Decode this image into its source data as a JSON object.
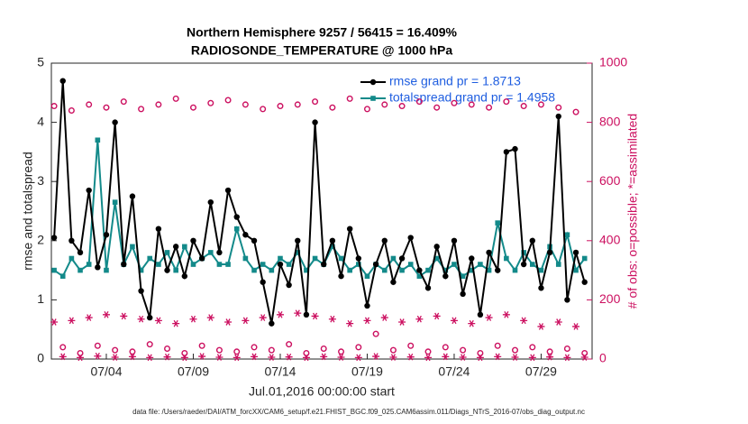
{
  "chart_data": {
    "type": "line",
    "title": "Northern Hemisphere 9257 / 56415 = 16.409%",
    "subtitle": "RADIOSONDE_TEMPERATURE @ 1000 hPa",
    "xlabel": "Jul.01,2016 00:00:00 start",
    "ylabel": "rmse and totalspread",
    "y2label": "# of obs: o=possible; *=assimilated",
    "footnote": "data file: /Users/raeder/DAI/ATM_forcXX/CAM6_setup/f.e21.FHIST_BGC.f09_025.CAM6assim.011/Diags_NTrS_2016-07/obs_diag_output.nc",
    "x": [
      0,
      0.5,
      1,
      1.5,
      2,
      2.5,
      3,
      3.5,
      4,
      4.5,
      5,
      5.5,
      6,
      6.5,
      7,
      7.5,
      8,
      8.5,
      9,
      9.5,
      10,
      10.5,
      11,
      11.5,
      12,
      12.5,
      13,
      13.5,
      14,
      14.5,
      15,
      15.5,
      16,
      16.5,
      17,
      17.5,
      18,
      18.5,
      19,
      19.5,
      20,
      20.5,
      21,
      21.5,
      22,
      22.5,
      23,
      23.5,
      24,
      24.5,
      25,
      25.5,
      26,
      26.5,
      27,
      27.5,
      28,
      28.5,
      29,
      29.5,
      30,
      30.5
    ],
    "xlim": [
      -0.16,
      30.93
    ],
    "xticks": [
      {
        "value": 3,
        "label": "07/04"
      },
      {
        "value": 8,
        "label": "07/09"
      },
      {
        "value": 13,
        "label": "07/14"
      },
      {
        "value": 18,
        "label": "07/19"
      },
      {
        "value": 23,
        "label": "07/24"
      },
      {
        "value": 28,
        "label": "07/29"
      }
    ],
    "ylim": [
      0,
      5
    ],
    "yticks": [
      0,
      1,
      2,
      3,
      4,
      5
    ],
    "y2lim": [
      0,
      1000
    ],
    "y2ticks": [
      0,
      200,
      400,
      600,
      800,
      1000
    ],
    "y2color": "#cc1060",
    "series": [
      {
        "name": "rmse grand pr = 1.8713",
        "color": "#000000",
        "marker": "circle",
        "line": true,
        "values": [
          2.05,
          4.7,
          2.0,
          1.8,
          2.85,
          1.55,
          2.1,
          4.0,
          1.6,
          2.75,
          1.15,
          0.7,
          2.2,
          1.5,
          1.9,
          1.4,
          2.0,
          1.7,
          2.65,
          1.8,
          2.85,
          2.4,
          2.1,
          2.0,
          1.3,
          0.6,
          1.6,
          1.25,
          2.0,
          0.75,
          4.0,
          1.6,
          2.0,
          1.4,
          2.2,
          1.7,
          0.9,
          1.6,
          2.0,
          1.3,
          1.7,
          2.05,
          1.5,
          1.2,
          1.9,
          1.4,
          2.0,
          1.1,
          1.7,
          0.75,
          1.8,
          1.5,
          3.5,
          3.55,
          1.6,
          2.0,
          1.2,
          1.8,
          4.1,
          1.0,
          1.8,
          1.3
        ]
      },
      {
        "name": "totalspread grand pr = 1.4958",
        "color": "#138a8a",
        "marker": "square",
        "line": true,
        "values": [
          1.5,
          1.4,
          1.7,
          1.5,
          1.6,
          3.7,
          1.5,
          2.65,
          1.6,
          1.9,
          1.5,
          1.7,
          1.6,
          1.8,
          1.5,
          1.9,
          1.6,
          1.7,
          1.8,
          1.6,
          1.6,
          2.2,
          1.7,
          1.5,
          1.6,
          1.5,
          1.7,
          1.6,
          1.8,
          1.5,
          1.7,
          1.6,
          1.9,
          1.7,
          1.5,
          1.6,
          1.4,
          1.6,
          1.5,
          1.7,
          1.5,
          1.6,
          1.4,
          1.5,
          1.7,
          1.5,
          1.6,
          1.4,
          1.5,
          1.6,
          1.5,
          2.3,
          1.7,
          1.5,
          1.8,
          1.6,
          1.5,
          1.9,
          1.6,
          2.1,
          1.5,
          1.7
        ]
      },
      {
        "color": "#cc1060",
        "marker": "open-circle",
        "line": false,
        "axis": "y2",
        "values": [
          855,
          40,
          840,
          20,
          860,
          45,
          850,
          30,
          870,
          25,
          845,
          50,
          860,
          35,
          880,
          20,
          850,
          45,
          865,
          30,
          875,
          25,
          860,
          40,
          845,
          30,
          855,
          50,
          860,
          20,
          870,
          35,
          850,
          25,
          880,
          40,
          845,
          85,
          860,
          30,
          855,
          45,
          870,
          25,
          850,
          40,
          865,
          30,
          860,
          20,
          850,
          45,
          870,
          30,
          855,
          40,
          860,
          25,
          850,
          35,
          835,
          20
        ]
      },
      {
        "color": "#cc1060",
        "marker": "asterisk",
        "line": false,
        "axis": "y2",
        "values": [
          125,
          8,
          130,
          5,
          140,
          10,
          150,
          6,
          145,
          8,
          135,
          5,
          130,
          7,
          120,
          5,
          135,
          9,
          140,
          6,
          125,
          5,
          130,
          8,
          140,
          6,
          150,
          7,
          155,
          5,
          145,
          8,
          135,
          6,
          120,
          5,
          130,
          9,
          140,
          6,
          125,
          7,
          135,
          5,
          145,
          8,
          130,
          6,
          120,
          5,
          140,
          8,
          150,
          6,
          130,
          5,
          110,
          7,
          125,
          5,
          110,
          6
        ]
      }
    ]
  }
}
